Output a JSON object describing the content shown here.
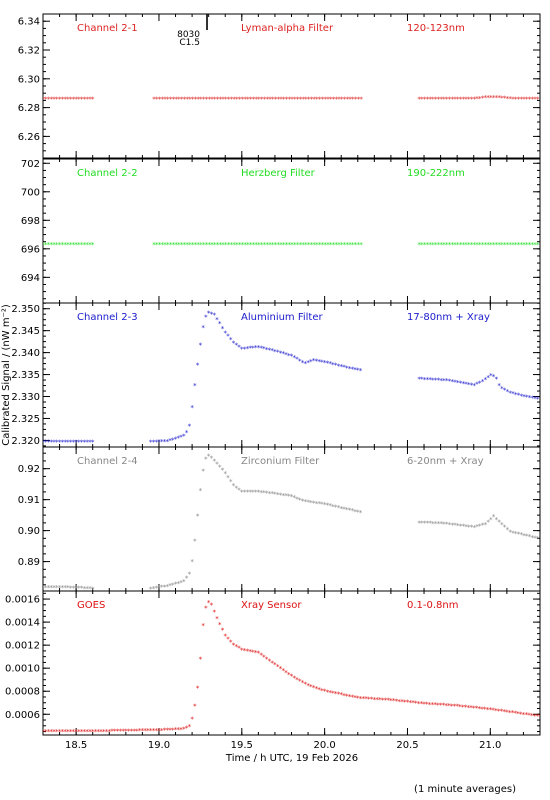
{
  "page": {
    "ylabel": "Calibrated Signal / (nW m⁻²)",
    "xlabel": "Time / h UTC, 19 Feb 2026",
    "footnote": "(1 minute averages)"
  },
  "chart_data": [
    {
      "type": "scatter",
      "channel": "Channel 2-1",
      "filter": "Lyman-alpha Filter",
      "band": "120-123nm",
      "color": "#dd2222",
      "xlim": [
        18.3,
        21.3
      ],
      "ylim": [
        6.245,
        6.345
      ],
      "yticks": [
        "6.26",
        "6.28",
        "6.30",
        "6.32",
        "6.34"
      ],
      "annotation": {
        "x": 19.29,
        "line1": "8030",
        "line2": "C1.5"
      },
      "segments": [
        {
          "x": [
            18.3,
            18.6
          ],
          "y": [
            6.286,
            6.286
          ]
        },
        {
          "x": [
            18.97,
            20.23
          ],
          "y": [
            6.286,
            6.286
          ]
        },
        {
          "x": [
            20.57,
            20.9,
            20.98,
            21.05,
            21.15,
            21.3
          ],
          "y": [
            6.286,
            6.286,
            6.287,
            6.287,
            6.286,
            6.286
          ]
        }
      ]
    },
    {
      "type": "scatter",
      "channel": "Channel 2-2",
      "filter": "Herzberg Filter",
      "band": "190-222nm",
      "color": "#22dd22",
      "xlim": [
        18.3,
        21.3
      ],
      "ylim": [
        692.2,
        702.3
      ],
      "yticks": [
        "694",
        "696",
        "698",
        "700",
        "702"
      ],
      "segments": [
        {
          "x": [
            18.3,
            18.6
          ],
          "y": [
            696.3,
            696.3
          ]
        },
        {
          "x": [
            18.97,
            20.23
          ],
          "y": [
            696.3,
            696.3
          ]
        },
        {
          "x": [
            20.57,
            21.3
          ],
          "y": [
            696.3,
            696.3
          ]
        }
      ]
    },
    {
      "type": "scatter",
      "channel": "Channel 2-3",
      "filter": "Aluminium Filter",
      "band": "17-80nm + Xray",
      "color": "#1a1acc",
      "xlim": [
        18.3,
        21.3
      ],
      "ylim": [
        2.3185,
        2.3513
      ],
      "yticks": [
        "2.320",
        "2.325",
        "2.330",
        "2.335",
        "2.340",
        "2.345",
        "2.350"
      ],
      "segments": [
        {
          "x": [
            18.3,
            18.6
          ],
          "y": [
            2.3196,
            2.3196
          ]
        },
        {
          "x": [
            18.95,
            19.05,
            19.1,
            19.15,
            19.18,
            19.2,
            19.22,
            19.24,
            19.26,
            19.28,
            19.3,
            19.33,
            19.36,
            19.4,
            19.45,
            19.5,
            19.6,
            19.7,
            19.8,
            19.88,
            19.93,
            20.0,
            20.1,
            20.23
          ],
          "y": [
            2.3196,
            2.3198,
            2.3203,
            2.321,
            2.3225,
            2.3275,
            2.3335,
            2.339,
            2.3445,
            2.348,
            2.349,
            2.3487,
            2.347,
            2.3445,
            2.3422,
            2.3408,
            2.3412,
            2.3403,
            2.3392,
            2.3375,
            2.3382,
            2.3378,
            2.3368,
            2.3358
          ]
        },
        {
          "x": [
            20.57,
            20.75,
            20.9,
            20.96,
            21.0,
            21.03,
            21.06,
            21.12,
            21.2,
            21.3
          ],
          "y": [
            2.334,
            2.3336,
            2.3325,
            2.3335,
            2.3348,
            2.3345,
            2.332,
            2.3308,
            2.33,
            2.3293
          ]
        }
      ]
    },
    {
      "type": "scatter",
      "channel": "Channel 2-4",
      "filter": "Zirconium Filter",
      "band": "6-20nm + Xray",
      "color": "#888888",
      "xlim": [
        18.3,
        21.3
      ],
      "ylim": [
        0.8805,
        0.927
      ],
      "yticks": [
        "0.89",
        "0.90",
        "0.91",
        "0.92"
      ],
      "segments": [
        {
          "x": [
            18.3,
            18.5,
            18.6
          ],
          "y": [
            0.8817,
            0.8815,
            0.8812
          ]
        },
        {
          "x": [
            18.95,
            19.05,
            19.15,
            19.19,
            19.21,
            19.23,
            19.25,
            19.27,
            19.29,
            19.31,
            19.35,
            19.4,
            19.45,
            19.5,
            19.6,
            19.7,
            19.8,
            19.87,
            19.92,
            20.0,
            20.1,
            20.23
          ],
          "y": [
            0.8812,
            0.882,
            0.8835,
            0.8865,
            0.8935,
            0.903,
            0.913,
            0.9205,
            0.9245,
            0.9238,
            0.9215,
            0.9185,
            0.9145,
            0.9125,
            0.9125,
            0.9118,
            0.911,
            0.9095,
            0.909,
            0.9085,
            0.9072,
            0.9057
          ]
        },
        {
          "x": [
            20.57,
            20.7,
            20.9,
            20.97,
            21.02,
            21.06,
            21.12,
            21.2,
            21.3
          ],
          "y": [
            0.9025,
            0.9023,
            0.901,
            0.902,
            0.9045,
            0.9025,
            0.8995,
            0.8985,
            0.8972
          ]
        }
      ]
    },
    {
      "type": "scatter",
      "channel": "GOES",
      "filter": "Xray Sensor",
      "band": "0.1-0.8nm",
      "color": "#dd1111",
      "xlim": [
        18.3,
        21.3
      ],
      "ylim": [
        0.00042,
        0.00167
      ],
      "yticks": [
        "0.0006",
        "0.0008",
        "0.0010",
        "0.0012",
        "0.0014",
        "0.0016"
      ],
      "segments": [
        {
          "x": [
            18.3,
            18.6,
            19.0,
            19.15,
            19.19,
            19.21,
            19.23,
            19.25,
            19.27,
            19.29,
            19.31,
            19.33,
            19.36,
            19.4,
            19.45,
            19.5,
            19.6,
            19.7,
            19.8,
            19.9,
            20.0,
            20.2,
            20.4,
            20.6,
            20.8,
            21.0,
            21.2,
            21.3
          ],
          "y": [
            0.00045,
            0.00045,
            0.00046,
            0.00047,
            0.0005,
            0.00062,
            0.00078,
            0.00108,
            0.00143,
            0.00157,
            0.00157,
            0.0015,
            0.0014,
            0.00128,
            0.0012,
            0.00116,
            0.00113,
            0.00103,
            0.00093,
            0.00085,
            0.0008,
            0.00074,
            0.00072,
            0.00069,
            0.00067,
            0.00064,
            0.0006,
            0.00058
          ]
        }
      ]
    }
  ],
  "xaxis": {
    "ticks": [
      18.5,
      19.0,
      19.5,
      20.0,
      20.5,
      21.0
    ],
    "tick_labels": [
      "18.5",
      "19.0",
      "19.5",
      "20.0",
      "20.5",
      "21.0"
    ]
  }
}
